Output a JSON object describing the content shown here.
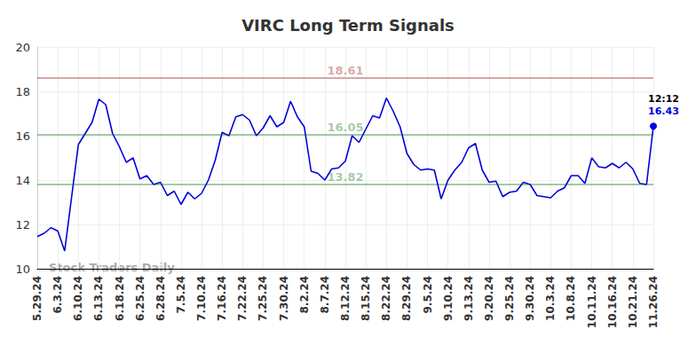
{
  "chart_data": {
    "type": "line",
    "title": "VIRC Long Term Signals",
    "categories": [
      "5.29.24",
      null,
      null,
      "6.3.24",
      null,
      null,
      "6.10.24",
      null,
      null,
      "6.13.24",
      null,
      null,
      "6.18.24",
      null,
      null,
      "6.25.24",
      null,
      null,
      "6.28.24",
      null,
      null,
      "7.5.24",
      null,
      null,
      "7.10.24",
      null,
      null,
      "7.16.24",
      null,
      null,
      "7.22.24",
      null,
      null,
      "7.25.24",
      null,
      null,
      "7.30.24",
      null,
      null,
      "8.2.24",
      null,
      null,
      "8.7.24",
      null,
      null,
      "8.12.24",
      null,
      null,
      "8.15.24",
      null,
      null,
      "8.22.24",
      null,
      null,
      "8.29.24",
      null,
      null,
      "9.5.24",
      null,
      null,
      "9.10.24",
      null,
      null,
      "9.13.24",
      null,
      null,
      "9.20.24",
      null,
      null,
      "9.25.24",
      null,
      null,
      "9.30.24",
      null,
      null,
      "10.3.24",
      null,
      null,
      "10.8.24",
      null,
      null,
      "10.11.24",
      null,
      null,
      "10.16.24",
      null,
      null,
      "10.21.24",
      null,
      null,
      "11.26.24"
    ],
    "values": [
      11.45,
      11.6,
      11.85,
      11.7,
      10.8,
      13.2,
      15.6,
      16.1,
      16.6,
      17.65,
      17.4,
      16.1,
      15.5,
      14.8,
      15.0,
      14.05,
      14.2,
      13.8,
      13.9,
      13.3,
      13.5,
      12.9,
      13.45,
      13.15,
      13.4,
      14.0,
      14.9,
      16.15,
      16.0,
      16.85,
      16.95,
      16.7,
      16.0,
      16.35,
      16.9,
      16.4,
      16.6,
      17.55,
      16.85,
      16.4,
      14.4,
      14.3,
      14.0,
      14.5,
      14.55,
      14.85,
      16.0,
      15.7,
      16.3,
      16.9,
      16.8,
      17.7,
      17.1,
      16.4,
      15.2,
      14.7,
      14.45,
      14.5,
      14.45,
      13.15,
      14.0,
      14.45,
      14.8,
      15.45,
      15.65,
      14.45,
      13.9,
      13.95,
      13.25,
      13.45,
      13.5,
      13.9,
      13.8,
      13.3,
      13.25,
      13.2,
      13.5,
      13.65,
      14.2,
      14.2,
      13.85,
      15.0,
      14.6,
      14.55,
      14.75,
      14.55,
      14.8,
      14.5,
      13.85,
      13.8,
      16.43
    ],
    "color": "#0000dd",
    "ylim": [
      10,
      20
    ],
    "yticks": [
      10,
      12,
      14,
      16,
      18,
      20
    ],
    "grid": true,
    "reference_lines": [
      {
        "value": 18.61,
        "color": "#8b0000"
      },
      {
        "value": 16.05,
        "color": "#006400"
      },
      {
        "value": 13.82,
        "color": "#006400"
      }
    ],
    "last_point": {
      "time": "12:12",
      "value": 16.43
    },
    "watermark": "Stock Traders Daily"
  }
}
